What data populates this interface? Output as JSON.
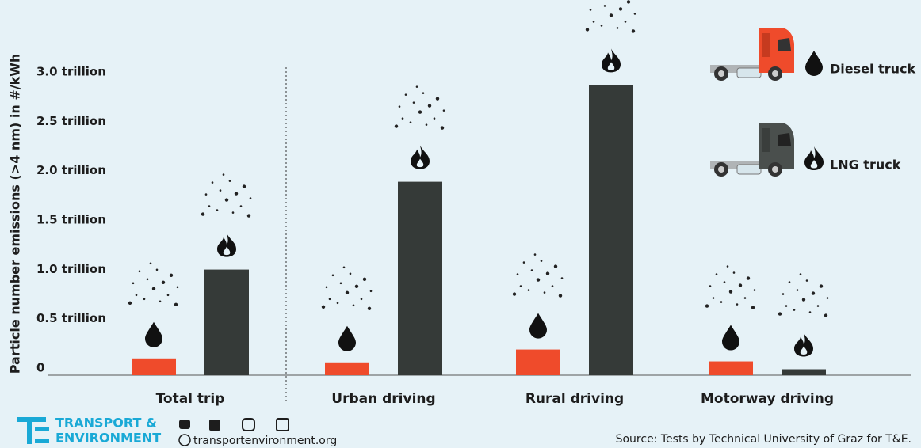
{
  "chart_data": {
    "type": "bar",
    "y_label": "Particle number emissions (>4 nm) in #/kWh",
    "categories": [
      "Total trip",
      "Urban driving",
      "Rural driving",
      "Motorway driving"
    ],
    "series": [
      {
        "name": "Diesel truck",
        "color": "#ef4b2b",
        "values": [
          170000000000,
          130000000000,
          260000000000,
          140000000000
        ]
      },
      {
        "name": "LNG truck",
        "color": "#353a38",
        "values": [
          1070000000000,
          1960000000000,
          2940000000000,
          60000000000
        ]
      }
    ],
    "ylim": [
      0,
      3200000000000
    ],
    "yticks": [
      0,
      {
        "value": 500000000000,
        "label": "0.5 trillion"
      },
      {
        "value": 1000000000000,
        "label": "1.0 trillion"
      },
      {
        "value": 1500000000000,
        "label": "1.5 trillion"
      },
      {
        "value": 2000000000000,
        "label": "2.0 trillion"
      },
      {
        "value": 2500000000000,
        "label": "2.5 trillion"
      },
      {
        "value": 3000000000000,
        "label": "3.0 trillion"
      }
    ],
    "grid": false
  },
  "footer": {
    "logo_line1": "TRANSPORT &",
    "logo_line2": "ENVIRONMENT",
    "website": "transportenvironment.org",
    "source": "Source: Tests by Technical University of Graz for T&E."
  }
}
